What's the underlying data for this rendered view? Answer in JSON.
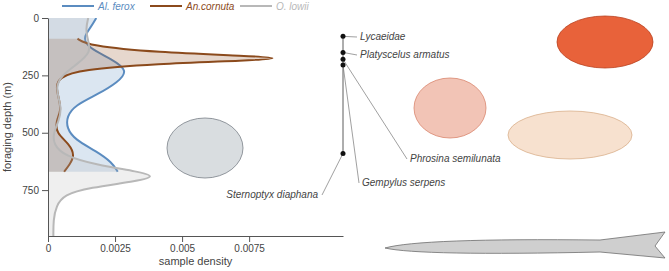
{
  "chart_data": {
    "type": "area",
    "x_label": "sample density",
    "y_label": "foraging depth (m)",
    "xlim": [
      0,
      0.011
    ],
    "xticks": [
      0,
      0.0025,
      0.005,
      0.0075
    ],
    "ylim": [
      0,
      950
    ],
    "yticks": [
      0,
      250,
      500,
      750
    ],
    "legend": "top",
    "series": [
      {
        "name": "Al. ferox",
        "color": "#5b8cc0",
        "depth": [
          0,
          40,
          85,
          130,
          180,
          230,
          280,
          330,
          380,
          430,
          480,
          530,
          580,
          630,
          670
        ],
        "values": [
          0.0018,
          0.0016,
          0.0013,
          0.0015,
          0.0024,
          0.003,
          0.0026,
          0.0019,
          0.001,
          0.0007,
          0.0007,
          0.001,
          0.0018,
          0.0024,
          0.0026
        ]
      },
      {
        "name": "An.cornuta",
        "color": "#8b4a1c",
        "depth": [
          90,
          120,
          150,
          165,
          175,
          185,
          200,
          225,
          260,
          300,
          350,
          400,
          450,
          500,
          550,
          600,
          640,
          670
        ],
        "values": [
          0.0011,
          0.0015,
          0.004,
          0.0075,
          0.0088,
          0.0075,
          0.004,
          0.0012,
          0.0004,
          0.0003,
          0.0004,
          0.0005,
          0.0003,
          0.0003,
          0.0008,
          0.001,
          0.0008,
          0.0006
        ]
      },
      {
        "name": "O. lowii",
        "color": "#b8b8b8",
        "depth": [
          0,
          50,
          100,
          150,
          200,
          250,
          300,
          350,
          400,
          450,
          500,
          550,
          600,
          640,
          670,
          690,
          710,
          740,
          770,
          820,
          880,
          950
        ],
        "values": [
          0.0015,
          0.0014,
          0.0015,
          0.0016,
          0.0011,
          0.0005,
          0.0003,
          0.0004,
          0.0005,
          0.0004,
          0.0002,
          0.0002,
          0.0006,
          0.0018,
          0.0034,
          0.004,
          0.0034,
          0.0015,
          0.0006,
          0.0003,
          0.0002,
          0.0002
        ]
      }
    ],
    "annotations": [
      {
        "text": "Lycaeidae",
        "depth": 80
      },
      {
        "text": "Platyscelus armatus",
        "depth": 150
      },
      {
        "text": "Phrosina semilunata",
        "depth": 180
      },
      {
        "text": "Gempylus serpens",
        "depth": 205
      },
      {
        "text": "Sternoptyx diaphana",
        "depth": 590
      }
    ]
  }
}
